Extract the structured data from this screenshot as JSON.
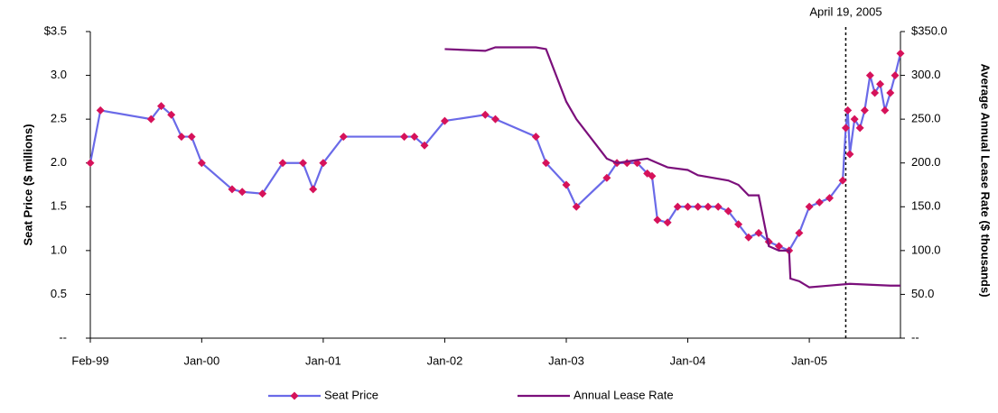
{
  "chart_data": {
    "type": "line",
    "ylabel": "Seat Price ($ millions)",
    "y2label": "Average Annual Lease Rate ($ thousands)",
    "annotation": {
      "text": "April 19, 2005",
      "x": "2005-04-19"
    },
    "xlim": [
      "1999-02",
      "2005-10"
    ],
    "xticks": [
      {
        "value": "1999-02",
        "label": "Feb-99"
      },
      {
        "value": "2000-01",
        "label": "Jan-00"
      },
      {
        "value": "2001-01",
        "label": "Jan-01"
      },
      {
        "value": "2002-01",
        "label": "Jan-02"
      },
      {
        "value": "2003-01",
        "label": "Jan-03"
      },
      {
        "value": "2004-01",
        "label": "Jan-04"
      },
      {
        "value": "2005-01",
        "label": "Jan-05"
      }
    ],
    "ylim": [
      0,
      3.5
    ],
    "yticks": [
      {
        "value": 0,
        "label": "--"
      },
      0.5,
      {
        "value": 1,
        "label": "1.0"
      },
      1.5,
      {
        "value": 2,
        "label": "2.0"
      },
      2.5,
      {
        "value": 3,
        "label": "3.0"
      },
      {
        "value": 3.5,
        "label": "$3.5"
      }
    ],
    "y2lim": [
      0,
      350
    ],
    "y2ticks": [
      {
        "value": 0,
        "label": "--"
      },
      {
        "value": 50,
        "label": "50.0"
      },
      {
        "value": 100,
        "label": "100.0"
      },
      {
        "value": 150,
        "label": "150.0"
      },
      {
        "value": 200,
        "label": "200.0"
      },
      {
        "value": 250,
        "label": "250.0"
      },
      {
        "value": 300,
        "label": "300.0"
      },
      {
        "value": 350,
        "label": "$350.0"
      }
    ],
    "grid": false,
    "legend": "bottom",
    "series": [
      {
        "name": "Seat Price",
        "color": "#6a6ae8",
        "marker_color": "#d6125a",
        "x": [
          "1999-02",
          "1999-03",
          "1999-08",
          "1999-09",
          "1999-10",
          "1999-11",
          "1999-12",
          "2000-01",
          "2000-04",
          "2000-05",
          "2000-07",
          "2000-09",
          "2000-11",
          "2000-12",
          "2001-01",
          "2001-03",
          "2001-09",
          "2001-10",
          "2001-11",
          "2002-01",
          "2002-05",
          "2002-06",
          "2002-10",
          "2002-11",
          "2003-01",
          "2003-02",
          "2003-05",
          "2003-06",
          "2003-07",
          "2003-08",
          "2003-09",
          "2003-09-15",
          "2003-10",
          "2003-11",
          "2003-12",
          "2004-01",
          "2004-02",
          "2004-03",
          "2004-04",
          "2004-05",
          "2004-06",
          "2004-07",
          "2004-08",
          "2004-09",
          "2004-10",
          "2004-11",
          "2004-12",
          "2005-01",
          "2005-02",
          "2005-03",
          "2005-04-10",
          "2005-04-19",
          "2005-04-25",
          "2005-05",
          "2005-05-15",
          "2005-06",
          "2005-06-15",
          "2005-07",
          "2005-07-15",
          "2005-08",
          "2005-08-15",
          "2005-09",
          "2005-09-15",
          "2005-10"
        ],
        "values": [
          2.0,
          2.6,
          2.5,
          2.65,
          2.55,
          2.3,
          2.3,
          2.0,
          1.7,
          1.67,
          1.65,
          2.0,
          2.0,
          1.7,
          2.0,
          2.3,
          2.3,
          2.3,
          2.2,
          2.48,
          2.55,
          2.5,
          2.3,
          2.0,
          1.75,
          1.5,
          1.83,
          2.0,
          2.0,
          2.0,
          1.88,
          1.85,
          1.35,
          1.32,
          1.5,
          1.5,
          1.5,
          1.5,
          1.5,
          1.45,
          1.3,
          1.15,
          1.2,
          1.1,
          1.05,
          1.0,
          1.2,
          1.5,
          1.55,
          1.6,
          1.8,
          2.4,
          2.6,
          2.1,
          2.5,
          2.4,
          2.6,
          3.0,
          2.8,
          2.9,
          2.6,
          2.8,
          3.0,
          3.25
        ]
      },
      {
        "name": "Annual Lease Rate",
        "color": "#7b0f7b",
        "axis": "y2",
        "x": [
          "2002-01",
          "2002-05",
          "2002-06",
          "2002-10",
          "2002-11",
          "2003-01",
          "2003-02",
          "2003-05",
          "2003-06",
          "2003-09",
          "2003-10",
          "2003-11",
          "2004-01",
          "2004-02",
          "2004-05",
          "2004-06",
          "2004-07",
          "2004-08",
          "2004-09",
          "2004-10",
          "2004-11",
          "2004-11-05",
          "2004-12",
          "2005-01",
          "2005-03",
          "2005-05",
          "2005-07",
          "2005-09",
          "2005-10"
        ],
        "values": [
          330,
          328,
          332,
          332,
          330,
          270,
          250,
          205,
          200,
          205,
          200,
          195,
          192,
          186,
          180,
          175,
          163,
          163,
          105,
          100,
          100,
          68,
          65,
          58,
          60,
          62,
          61,
          60,
          60
        ]
      }
    ]
  }
}
